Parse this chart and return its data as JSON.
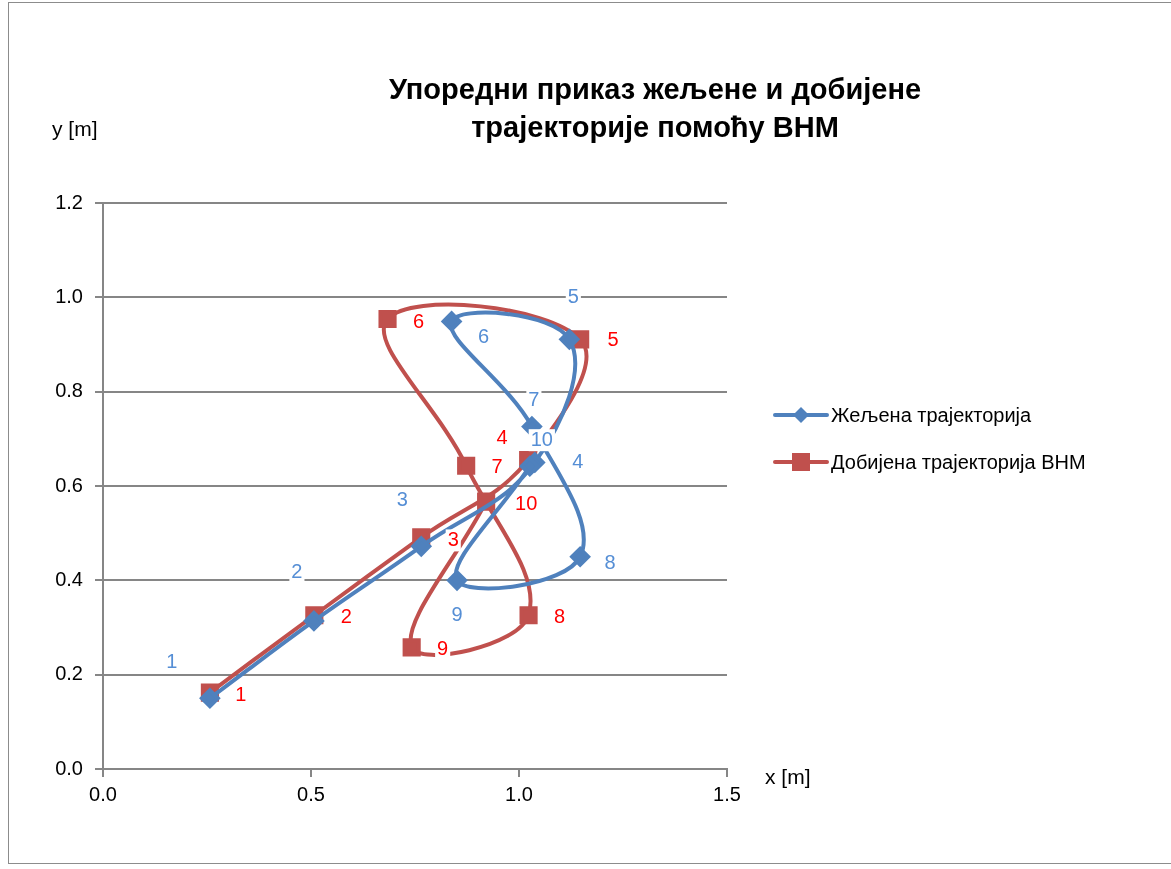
{
  "chart_data": {
    "type": "line",
    "title": "Упоредни приказ жељене и добијене траjекторије помоћу ВНМ",
    "xlabel": "x [m]",
    "ylabel": "y [m]",
    "xlim": [
      0,
      1.5
    ],
    "xticks": [
      {
        "value": 0,
        "label": "0.0"
      },
      {
        "value": 0.5,
        "label": "0.5"
      },
      {
        "value": 1,
        "label": "1.0"
      },
      {
        "value": 1.5,
        "label": "1.5"
      }
    ],
    "ylim": [
      0,
      1.2
    ],
    "yticks": [
      {
        "value": 0,
        "label": "0.0"
      },
      {
        "value": 0.2,
        "label": "0.2"
      },
      {
        "value": 0.4,
        "label": "0.4"
      },
      {
        "value": 0.6,
        "label": "0.6"
      },
      {
        "value": 0.8,
        "label": "0.8"
      },
      {
        "value": 1,
        "label": "1.0"
      },
      {
        "value": 1.2,
        "label": "1.2"
      }
    ],
    "grid": "y",
    "legend": "right",
    "series": [
      {
        "name": "Жељена траjекторија",
        "color": "#4f81bd",
        "marker": "diamond",
        "x": [
          0.257,
          0.507,
          0.765,
          1.038,
          1.121,
          0.838,
          1.031,
          1.147,
          0.851,
          1.026
        ],
        "values": [
          0.15,
          0.314,
          0.472,
          0.65,
          0.911,
          0.949,
          0.726,
          0.45,
          0.4,
          0.642
        ]
      },
      {
        "name": "Добиjена траjекторија ВНМ",
        "color": "#c0504d",
        "marker": "square",
        "x": [
          0.257,
          0.508,
          0.765,
          1.022,
          1.147,
          0.684,
          0.873,
          1.023,
          0.742,
          0.921
        ],
        "values": [
          0.162,
          0.326,
          0.491,
          0.655,
          0.911,
          0.954,
          0.643,
          0.326,
          0.258,
          0.567
        ]
      }
    ],
    "annotations": [
      {
        "text": "1",
        "x": 0.257,
        "y": 0.15
      },
      {
        "text": "2",
        "x": 0.507,
        "y": 0.314
      },
      {
        "text": "3",
        "x": 0.765,
        "y": 0.472
      },
      {
        "text": "4",
        "x": 1.038,
        "y": 0.65
      },
      {
        "text": "5",
        "x": 1.121,
        "y": 0.911
      },
      {
        "text": "6",
        "x": 0.838,
        "y": 0.949
      },
      {
        "text": "7",
        "x": 1.031,
        "y": 0.726
      },
      {
        "text": "8",
        "x": 1.147,
        "y": 0.45
      },
      {
        "text": "9",
        "x": 0.851,
        "y": 0.4
      },
      {
        "text": "10",
        "x": 1.026,
        "y": 0.642
      },
      {
        "text": "1",
        "x": 0.257,
        "y": 0.162
      },
      {
        "text": "2",
        "x": 0.508,
        "y": 0.326
      },
      {
        "text": "3",
        "x": 0.765,
        "y": 0.491
      },
      {
        "text": "4",
        "x": 1.022,
        "y": 0.655
      },
      {
        "text": "5",
        "x": 1.147,
        "y": 0.911
      },
      {
        "text": "6",
        "x": 0.684,
        "y": 0.954
      },
      {
        "text": "7",
        "x": 0.873,
        "y": 0.643
      },
      {
        "text": "8",
        "x": 1.023,
        "y": 0.326
      },
      {
        "text": "9",
        "x": 0.742,
        "y": 0.258
      },
      {
        "text": "10",
        "x": 0.921,
        "y": 0.567
      }
    ]
  }
}
